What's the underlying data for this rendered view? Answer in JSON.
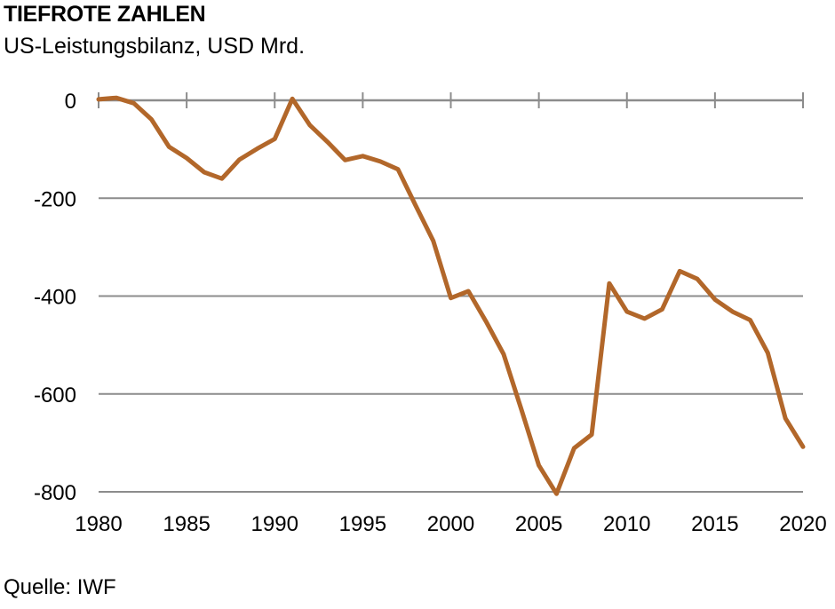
{
  "header": {
    "title": "TIEFROTE ZAHLEN",
    "subtitle": "US-Leistungsbilanz, USD Mrd."
  },
  "footer": {
    "source": "Quelle: IWF"
  },
  "chart_data": {
    "type": "line",
    "title": "TIEFROTE ZAHLEN",
    "subtitle": "US-Leistungsbilanz, USD Mrd.",
    "xlabel": "",
    "ylabel": "",
    "xlim": [
      1980,
      2020
    ],
    "ylim": [
      -800,
      0
    ],
    "xticks": [
      1980,
      1985,
      1990,
      1995,
      2000,
      2005,
      2010,
      2015,
      2020
    ],
    "yticks": [
      0,
      -200,
      -400,
      -600,
      -800
    ],
    "grid": true,
    "legend": "none",
    "line_color": "#b2672a",
    "grid_color": "#8c8c8c",
    "series": [
      {
        "x": [
          1980,
          1981,
          1982,
          1983,
          1984,
          1985,
          1986,
          1987,
          1988,
          1989,
          1990,
          1991,
          1992,
          1993,
          1994,
          1995,
          1996,
          1997,
          1998,
          1999,
          2000,
          2001,
          2002,
          2003,
          2004,
          2005,
          2006,
          2007,
          2008,
          2009,
          2010,
          2011,
          2012,
          2013,
          2014,
          2015,
          2016,
          2017,
          2018,
          2019,
          2020
        ],
        "values": [
          2,
          5,
          -6,
          -39,
          -95,
          -118,
          -147,
          -160,
          -121,
          -99,
          -79,
          3,
          -51,
          -85,
          -122,
          -114,
          -125,
          -141,
          -215,
          -287,
          -404,
          -390,
          -452,
          -519,
          -631,
          -746,
          -804,
          -711,
          -683,
          -374,
          -432,
          -446,
          -427,
          -349,
          -365,
          -407,
          -432,
          -449,
          -516,
          -650,
          -708
        ]
      }
    ]
  }
}
